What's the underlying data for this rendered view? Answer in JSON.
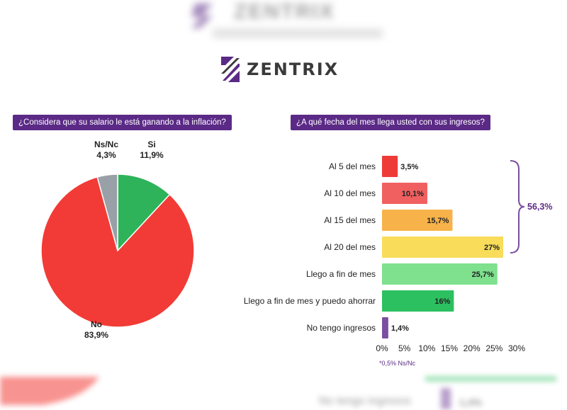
{
  "brand": {
    "name": "ZENTRIX"
  },
  "pie_title": "¿Considera que su salario le está ganando a la inflación?",
  "bar_title": "¿A qué fecha del mes llega usted con sus ingresos?",
  "bracket_label": "56,3%",
  "footnote": "*0,5% Ns/Nc",
  "bottom_blur_text": "No tengo ingresos",
  "bottom_blur_value": "1,4%",
  "chart_data": [
    {
      "type": "pie",
      "title": "¿Considera que su salario le está ganando a la inflación?",
      "slices": [
        {
          "label": "Si",
          "value": 11.9,
          "value_label": "11,9%",
          "color": "#2eb35a"
        },
        {
          "label": "No",
          "value": 83.9,
          "value_label": "83,9%",
          "color": "#f23b36"
        },
        {
          "label": "Ns/Nc",
          "value": 4.3,
          "value_label": "4,3%",
          "color": "#9aa0a8"
        }
      ]
    },
    {
      "type": "bar",
      "orientation": "horizontal",
      "title": "¿A qué fecha del mes llega usted con sus ingresos?",
      "categories": [
        "Al 5 del mes",
        "Al 10 del mes",
        "Al 15 del mes",
        "Al 20 del mes",
        "Llego a fin de mes",
        "Llego a fin de mes y puedo ahorrar",
        "No tengo ingresos"
      ],
      "values": [
        3.5,
        10.1,
        15.7,
        27,
        25.7,
        16,
        1.4
      ],
      "value_labels": [
        "3,5%",
        "10,1%",
        "15,7%",
        "27%",
        "25,7%",
        "16%",
        "1,4%"
      ],
      "colors": [
        "#ee3b38",
        "#f06060",
        "#f8b24a",
        "#f8dc5a",
        "#7fe08e",
        "#2cc060",
        "#7b4ea0"
      ],
      "xlim": [
        0,
        30
      ],
      "xticks": [
        "0%",
        "5%",
        "10%",
        "15%",
        "20%",
        "25%",
        "30%"
      ],
      "bracket": {
        "from": 0,
        "to": 3,
        "label": "56,3%"
      }
    }
  ]
}
